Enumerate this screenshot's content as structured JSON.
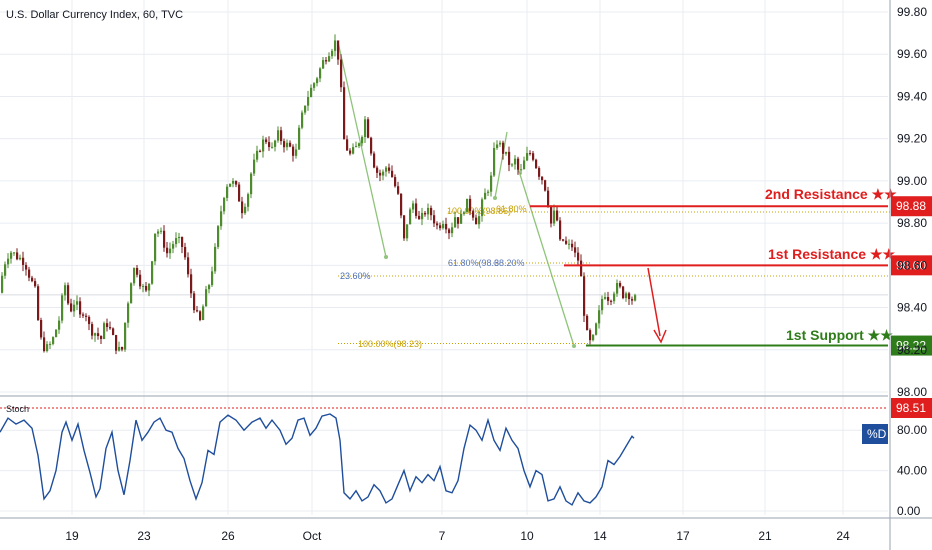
{
  "chart_data": [
    {
      "type": "candlestick",
      "title": "U.S. Dollar Currency Index, 60, TVC",
      "ylim": [
        98.0,
        99.8
      ],
      "y_ticks": [
        "99.80",
        "99.60",
        "99.40",
        "99.20",
        "99.00",
        "98.80",
        "98.60",
        "98.40",
        "98.20",
        "98.00"
      ],
      "x_ticks": [
        "19",
        "23",
        "26",
        "Oct",
        "7",
        "10",
        "14",
        "17",
        "21",
        "24"
      ],
      "price_path": [
        [
          0,
          98.47
        ],
        [
          4,
          98.6
        ],
        [
          10,
          98.67
        ],
        [
          18,
          98.64
        ],
        [
          25,
          98.62
        ],
        [
          30,
          98.55
        ],
        [
          36,
          98.47
        ],
        [
          40,
          98.26
        ],
        [
          46,
          98.2
        ],
        [
          52,
          98.23
        ],
        [
          60,
          98.35
        ],
        [
          65,
          98.52
        ],
        [
          70,
          98.38
        ],
        [
          76,
          98.44
        ],
        [
          80,
          98.35
        ],
        [
          85,
          98.4
        ],
        [
          90,
          98.3
        ],
        [
          96,
          98.28
        ],
        [
          102,
          98.25
        ],
        [
          106,
          98.34
        ],
        [
          110,
          98.3
        ],
        [
          116,
          98.22
        ],
        [
          122,
          98.18
        ],
        [
          126,
          98.35
        ],
        [
          132,
          98.55
        ],
        [
          136,
          98.6
        ],
        [
          142,
          98.5
        ],
        [
          148,
          98.46
        ],
        [
          152,
          98.62
        ],
        [
          156,
          98.78
        ],
        [
          162,
          98.74
        ],
        [
          168,
          98.65
        ],
        [
          172,
          98.7
        ],
        [
          178,
          98.72
        ],
        [
          184,
          98.68
        ],
        [
          190,
          98.5
        ],
        [
          196,
          98.38
        ],
        [
          200,
          98.32
        ],
        [
          205,
          98.44
        ],
        [
          210,
          98.52
        ],
        [
          215,
          98.65
        ],
        [
          220,
          98.82
        ],
        [
          226,
          98.98
        ],
        [
          232,
          99.0
        ],
        [
          238,
          98.95
        ],
        [
          242,
          98.86
        ],
        [
          248,
          98.93
        ],
        [
          252,
          99.05
        ],
        [
          256,
          99.1
        ],
        [
          262,
          99.18
        ],
        [
          268,
          99.2
        ],
        [
          272,
          99.14
        ],
        [
          278,
          99.22
        ],
        [
          284,
          99.18
        ],
        [
          290,
          99.16
        ],
        [
          296,
          99.12
        ],
        [
          300,
          99.25
        ],
        [
          306,
          99.38
        ],
        [
          312,
          99.44
        ],
        [
          318,
          99.5
        ],
        [
          324,
          99.57
        ],
        [
          330,
          99.62
        ],
        [
          336,
          99.66
        ],
        [
          340,
          99.55
        ],
        [
          344,
          99.2
        ],
        [
          350,
          99.12
        ],
        [
          356,
          99.15
        ],
        [
          362,
          99.22
        ],
        [
          366,
          99.3
        ],
        [
          370,
          99.18
        ],
        [
          376,
          99.05
        ],
        [
          382,
          99.02
        ],
        [
          388,
          99.08
        ],
        [
          394,
          99.0
        ],
        [
          400,
          98.9
        ],
        [
          404,
          98.7
        ],
        [
          408,
          98.82
        ],
        [
          414,
          98.9
        ],
        [
          420,
          98.8
        ],
        [
          426,
          98.86
        ],
        [
          432,
          98.84
        ],
        [
          438,
          98.78
        ],
        [
          444,
          98.82
        ],
        [
          450,
          98.76
        ],
        [
          456,
          98.84
        ],
        [
          460,
          98.8
        ],
        [
          466,
          98.9
        ],
        [
          472,
          98.86
        ],
        [
          478,
          98.8
        ],
        [
          484,
          98.92
        ],
        [
          488,
          98.96
        ],
        [
          492,
          99.02
        ],
        [
          496,
          99.2
        ],
        [
          500,
          99.17
        ],
        [
          506,
          99.12
        ],
        [
          512,
          99.06
        ],
        [
          516,
          99.1
        ],
        [
          520,
          99.02
        ],
        [
          526,
          99.11
        ],
        [
          532,
          99.14
        ],
        [
          536,
          99.08
        ],
        [
          540,
          99.03
        ],
        [
          544,
          99.0
        ],
        [
          548,
          98.92
        ],
        [
          552,
          98.78
        ],
        [
          556,
          98.88
        ],
        [
          560,
          98.7
        ],
        [
          564,
          98.72
        ],
        [
          568,
          98.68
        ],
        [
          572,
          98.7
        ],
        [
          576,
          98.64
        ],
        [
          580,
          98.62
        ],
        [
          584,
          98.4
        ],
        [
          588,
          98.25
        ],
        [
          592,
          98.22
        ],
        [
          596,
          98.3
        ],
        [
          600,
          98.38
        ],
        [
          604,
          98.48
        ],
        [
          610,
          98.44
        ],
        [
          616,
          98.5
        ],
        [
          620,
          98.49
        ],
        [
          624,
          98.46
        ],
        [
          628,
          98.48
        ],
        [
          632,
          98.44
        ],
        [
          634,
          98.44
        ]
      ],
      "levels": [
        {
          "label": "2nd Resistance ★★",
          "value": "98.88",
          "color": "#e01e1e"
        },
        {
          "label": "1st Resistance ★★",
          "value": "98.60",
          "color": "#e01e1e"
        },
        {
          "label": "1st Support ★★",
          "value": "98.22",
          "color": "#2f7d1a"
        }
      ],
      "fib_labels": [
        {
          "text": "23.60%",
          "color": "#4a6fb0"
        },
        {
          "text": "100.00%(98.23)",
          "color": "#c7a000"
        },
        {
          "text": "61.80%(98.6",
          "color": "#5a78b8"
        },
        {
          "text": "38.20%",
          "color": "#5a78b8"
        },
        {
          "text": "100.00%(98.86)",
          "color": "#c7a000"
        },
        {
          "text": "61.80%",
          "color": "#c7a000"
        }
      ],
      "colors": {
        "up": "#4e8b2f",
        "down": "#7a1a1a",
        "grid": "#e8ecf2",
        "arrow": "#e01e1e",
        "swing": "#8fc47a",
        "fib_dotted": "#c7a000"
      }
    },
    {
      "type": "line",
      "name": "Stoch",
      "ylim": [
        0,
        100
      ],
      "y_ticks": [
        "80.00",
        "40.00",
        "0.00"
      ],
      "badge": "%D",
      "level": {
        "value": "98.51",
        "color": "#e01e1e"
      },
      "values": [
        [
          0,
          78
        ],
        [
          8,
          92
        ],
        [
          16,
          86
        ],
        [
          24,
          90
        ],
        [
          32,
          82
        ],
        [
          38,
          55
        ],
        [
          44,
          12
        ],
        [
          50,
          20
        ],
        [
          56,
          40
        ],
        [
          62,
          78
        ],
        [
          66,
          88
        ],
        [
          72,
          70
        ],
        [
          78,
          86
        ],
        [
          84,
          60
        ],
        [
          90,
          38
        ],
        [
          96,
          14
        ],
        [
          100,
          22
        ],
        [
          106,
          62
        ],
        [
          112,
          78
        ],
        [
          118,
          40
        ],
        [
          124,
          16
        ],
        [
          130,
          50
        ],
        [
          136,
          90
        ],
        [
          142,
          70
        ],
        [
          148,
          78
        ],
        [
          154,
          88
        ],
        [
          160,
          92
        ],
        [
          166,
          80
        ],
        [
          172,
          78
        ],
        [
          178,
          62
        ],
        [
          184,
          52
        ],
        [
          190,
          30
        ],
        [
          196,
          12
        ],
        [
          202,
          28
        ],
        [
          208,
          60
        ],
        [
          214,
          56
        ],
        [
          220,
          88
        ],
        [
          228,
          95
        ],
        [
          236,
          90
        ],
        [
          244,
          80
        ],
        [
          252,
          88
        ],
        [
          260,
          92
        ],
        [
          266,
          82
        ],
        [
          272,
          90
        ],
        [
          280,
          80
        ],
        [
          286,
          66
        ],
        [
          292,
          72
        ],
        [
          298,
          90
        ],
        [
          304,
          92
        ],
        [
          310,
          75
        ],
        [
          316,
          82
        ],
        [
          322,
          94
        ],
        [
          330,
          96
        ],
        [
          336,
          92
        ],
        [
          340,
          70
        ],
        [
          344,
          18
        ],
        [
          350,
          12
        ],
        [
          356,
          20
        ],
        [
          362,
          10
        ],
        [
          368,
          14
        ],
        [
          374,
          26
        ],
        [
          380,
          20
        ],
        [
          386,
          8
        ],
        [
          392,
          12
        ],
        [
          398,
          26
        ],
        [
          404,
          40
        ],
        [
          410,
          20
        ],
        [
          416,
          34
        ],
        [
          422,
          28
        ],
        [
          428,
          36
        ],
        [
          434,
          30
        ],
        [
          440,
          44
        ],
        [
          446,
          20
        ],
        [
          452,
          18
        ],
        [
          458,
          30
        ],
        [
          464,
          62
        ],
        [
          470,
          85
        ],
        [
          476,
          80
        ],
        [
          482,
          70
        ],
        [
          488,
          90
        ],
        [
          494,
          70
        ],
        [
          500,
          60
        ],
        [
          506,
          82
        ],
        [
          512,
          70
        ],
        [
          518,
          62
        ],
        [
          524,
          40
        ],
        [
          530,
          24
        ],
        [
          536,
          40
        ],
        [
          542,
          36
        ],
        [
          548,
          10
        ],
        [
          554,
          12
        ],
        [
          560,
          24
        ],
        [
          566,
          10
        ],
        [
          572,
          6
        ],
        [
          578,
          18
        ],
        [
          584,
          10
        ],
        [
          590,
          8
        ],
        [
          596,
          14
        ],
        [
          602,
          24
        ],
        [
          608,
          50
        ],
        [
          614,
          46
        ],
        [
          620,
          54
        ],
        [
          626,
          64
        ],
        [
          632,
          74
        ],
        [
          634,
          72
        ]
      ]
    }
  ]
}
